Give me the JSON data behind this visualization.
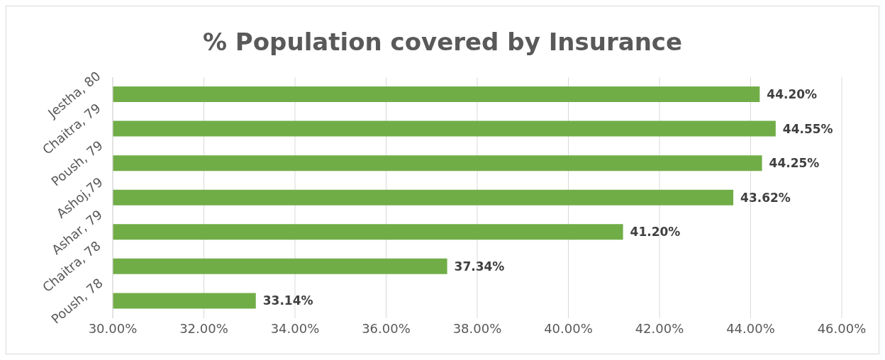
{
  "chart_data": {
    "type": "bar",
    "orientation": "horizontal",
    "title": "% Population covered by Insurance",
    "categories": [
      "Jestha, 80",
      "Chaitra, 79",
      "Poush, 79",
      "Ashoj,79",
      "Ashar, 79",
      "Chaitra, 78",
      "Poush, 78"
    ],
    "values": [
      44.2,
      44.55,
      44.25,
      43.62,
      41.2,
      37.34,
      33.14
    ],
    "value_labels": [
      "44.20%",
      "44.55%",
      "44.25%",
      "43.62%",
      "41.20%",
      "37.34%",
      "33.14%"
    ],
    "color": "#70ad47",
    "xlim": [
      30,
      46
    ],
    "xticks": [
      {
        "value": 30,
        "label": "30.00%"
      },
      {
        "value": 32,
        "label": "32.00%"
      },
      {
        "value": 34,
        "label": "34.00%"
      },
      {
        "value": 36,
        "label": "36.00%"
      },
      {
        "value": 38,
        "label": "38.00%"
      },
      {
        "value": 40,
        "label": "40.00%"
      },
      {
        "value": 42,
        "label": "42.00%"
      },
      {
        "value": 44,
        "label": "44.00%"
      },
      {
        "value": 46,
        "label": "46.00%"
      }
    ],
    "grid": "x",
    "legend": false
  }
}
